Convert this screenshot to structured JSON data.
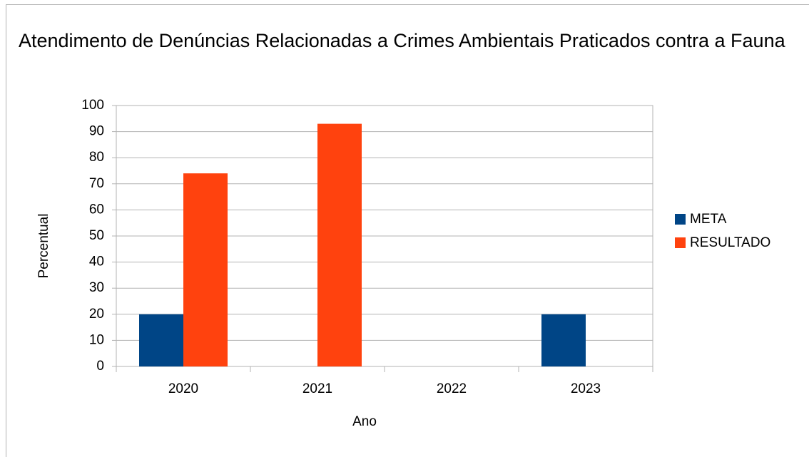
{
  "chart_data": {
    "type": "bar",
    "title": "Atendimento de Denúncias Relacionadas a Crimes Ambientais Praticados contra a Fauna",
    "x_label": "Ano",
    "y_label": "Percentual",
    "categories": [
      "2020",
      "2021",
      "2022",
      "2023"
    ],
    "series": [
      {
        "name": "META",
        "color": "#004586",
        "values": [
          20,
          null,
          null,
          20
        ]
      },
      {
        "name": "RESULTADO",
        "color": "#ff420e",
        "values": [
          74,
          93,
          null,
          null
        ]
      }
    ],
    "ylim": [
      0,
      100
    ],
    "yticks": [
      0,
      10,
      20,
      30,
      40,
      50,
      60,
      70,
      80,
      90,
      100
    ],
    "grid": true,
    "legend": "right"
  }
}
